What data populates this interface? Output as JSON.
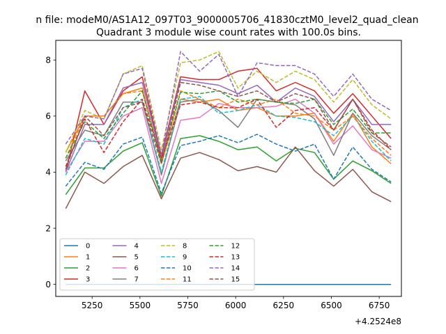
{
  "figure": {
    "suptitle": "n file: modeM0/AS1A12_097T03_9000005706_41830cztM0_level2_quad_clean",
    "title": "Quadrant 3 module wise count rates with 100.0s bins.",
    "x_offset_label": "+4.2524e8"
  },
  "chart_data": {
    "type": "line",
    "title": "Quadrant 3 module wise count rates with 100.0s bins.",
    "xlabel": "",
    "ylabel": "",
    "x_offset": 425240000,
    "x": [
      5112,
      5212,
      5312,
      5412,
      5512,
      5612,
      5712,
      5812,
      5912,
      6012,
      6112,
      6212,
      6312,
      6412,
      6512,
      6612,
      6712,
      6812
    ],
    "xlim": [
      5060,
      6866
    ],
    "ylim": [
      -0.43,
      8.7
    ],
    "xticks": [
      5250,
      5500,
      5750,
      6000,
      6250,
      6500,
      6750
    ],
    "yticks": [
      0,
      2,
      4,
      6,
      8
    ],
    "grid": false,
    "legend_placement": "lower-left",
    "legend_columns": 4,
    "series": [
      {
        "name": "0",
        "color": "#1f77b4",
        "dash": "solid",
        "values": [
          0,
          0,
          0,
          0,
          0,
          0,
          0,
          0,
          0,
          0,
          0,
          0,
          0,
          0,
          0,
          0,
          0,
          0
        ]
      },
      {
        "name": "1",
        "color": "#ff7f0e",
        "dash": "solid",
        "values": [
          4.7,
          6.0,
          6.0,
          6.8,
          7.0,
          4.3,
          6.6,
          6.5,
          6.6,
          6.2,
          6.3,
          6.0,
          6.0,
          6.1,
          5.1,
          6.1,
          4.9,
          4.3
        ]
      },
      {
        "name": "2",
        "color": "#2ca02c",
        "dash": "solid",
        "values": [
          3.2,
          4.15,
          4.15,
          4.75,
          5.05,
          3.15,
          5.2,
          5.3,
          5.1,
          4.8,
          4.9,
          4.4,
          4.85,
          4.7,
          3.75,
          4.4,
          4.05,
          3.6
        ]
      },
      {
        "name": "3",
        "color": "#d62728",
        "dash": "solid",
        "values": [
          4.0,
          6.9,
          5.7,
          6.9,
          7.4,
          4.6,
          7.4,
          7.3,
          7.3,
          7.6,
          7.7,
          6.9,
          7.2,
          6.9,
          6.1,
          6.8,
          6.0,
          5.2
        ]
      },
      {
        "name": "4",
        "color": "#9467bd",
        "dash": "solid",
        "values": [
          4.0,
          5.7,
          5.7,
          7.0,
          7.2,
          4.5,
          7.3,
          7.2,
          7.1,
          6.8,
          7.1,
          6.5,
          7.0,
          6.7,
          5.8,
          6.6,
          5.7,
          5.7
        ]
      },
      {
        "name": "5",
        "color": "#8c564b",
        "dash": "solid",
        "values": [
          2.7,
          4.0,
          3.6,
          4.2,
          4.6,
          3.05,
          4.5,
          4.7,
          4.45,
          4.05,
          4.2,
          4.0,
          4.9,
          4.05,
          3.5,
          4.1,
          3.3,
          2.95
        ]
      },
      {
        "name": "6",
        "color": "#e377c2",
        "dash": "solid",
        "values": [
          4.0,
          5.1,
          5.1,
          6.0,
          6.3,
          3.6,
          5.85,
          5.95,
          6.45,
          6.3,
          6.3,
          6.35,
          6.6,
          6.1,
          5.0,
          5.65,
          4.8,
          4.5
        ]
      },
      {
        "name": "7",
        "color": "#7f7f7f",
        "dash": "solid",
        "values": [
          4.4,
          5.5,
          5.3,
          6.5,
          6.5,
          3.9,
          6.5,
          6.6,
          6.2,
          5.6,
          6.6,
          6.5,
          6.4,
          5.9,
          4.6,
          6.1,
          5.3,
          4.8
        ]
      },
      {
        "name": "8",
        "color": "#bcbd22",
        "dash": "dashed",
        "values": [
          4.7,
          6.2,
          5.9,
          7.5,
          7.8,
          4.8,
          7.9,
          8.0,
          8.3,
          7.0,
          7.6,
          7.2,
          7.6,
          7.3,
          6.5,
          7.3,
          6.4,
          5.9
        ]
      },
      {
        "name": "9",
        "color": "#17becf",
        "dash": "dashed",
        "values": [
          3.9,
          5.2,
          5.0,
          6.3,
          6.6,
          4.0,
          6.6,
          6.7,
          6.1,
          6.2,
          6.4,
          6.0,
          5.95,
          5.8,
          5.3,
          6.0,
          5.1,
          4.4
        ]
      },
      {
        "name": "10",
        "color": "#1f77b4",
        "dash": "dashed",
        "values": [
          3.5,
          4.35,
          4.1,
          5.0,
          5.25,
          3.25,
          4.95,
          5.1,
          5.3,
          5.05,
          5.35,
          5.0,
          4.75,
          5.0,
          3.75,
          4.9,
          4.1,
          3.65
        ]
      },
      {
        "name": "11",
        "color": "#ff7f0e",
        "dash": "dashed",
        "values": [
          4.5,
          6.0,
          6.0,
          6.8,
          6.9,
          4.4,
          6.9,
          6.6,
          6.3,
          6.6,
          6.4,
          6.6,
          6.1,
          6.0,
          5.5,
          6.0,
          5.2,
          4.6
        ]
      },
      {
        "name": "12",
        "color": "#2ca02c",
        "dash": "dashed",
        "values": [
          4.5,
          5.8,
          5.2,
          6.1,
          6.9,
          4.4,
          6.85,
          6.8,
          6.9,
          6.5,
          6.6,
          6.5,
          6.45,
          6.6,
          5.7,
          6.25,
          5.4,
          5.4
        ]
      },
      {
        "name": "13",
        "color": "#d62728",
        "dash": "dashed",
        "values": [
          4.2,
          5.9,
          4.7,
          5.8,
          6.6,
          4.5,
          6.4,
          6.5,
          6.3,
          6.3,
          6.6,
          5.6,
          6.2,
          6.3,
          5.5,
          6.6,
          5.5,
          4.8
        ]
      },
      {
        "name": "14",
        "color": "#9467bd",
        "dash": "dashed",
        "values": [
          5.0,
          6.0,
          5.9,
          7.5,
          7.7,
          4.6,
          8.3,
          7.6,
          8.2,
          6.7,
          7.9,
          7.8,
          7.8,
          7.5,
          6.7,
          7.5,
          6.6,
          6.2
        ]
      },
      {
        "name": "15",
        "color": "#8c564b",
        "dash": "dashed",
        "values": [
          4.1,
          6.0,
          5.3,
          6.3,
          6.5,
          4.3,
          7.2,
          7.1,
          6.9,
          6.7,
          6.9,
          6.5,
          6.8,
          6.6,
          5.5,
          6.6,
          5.4,
          4.9
        ]
      }
    ]
  }
}
